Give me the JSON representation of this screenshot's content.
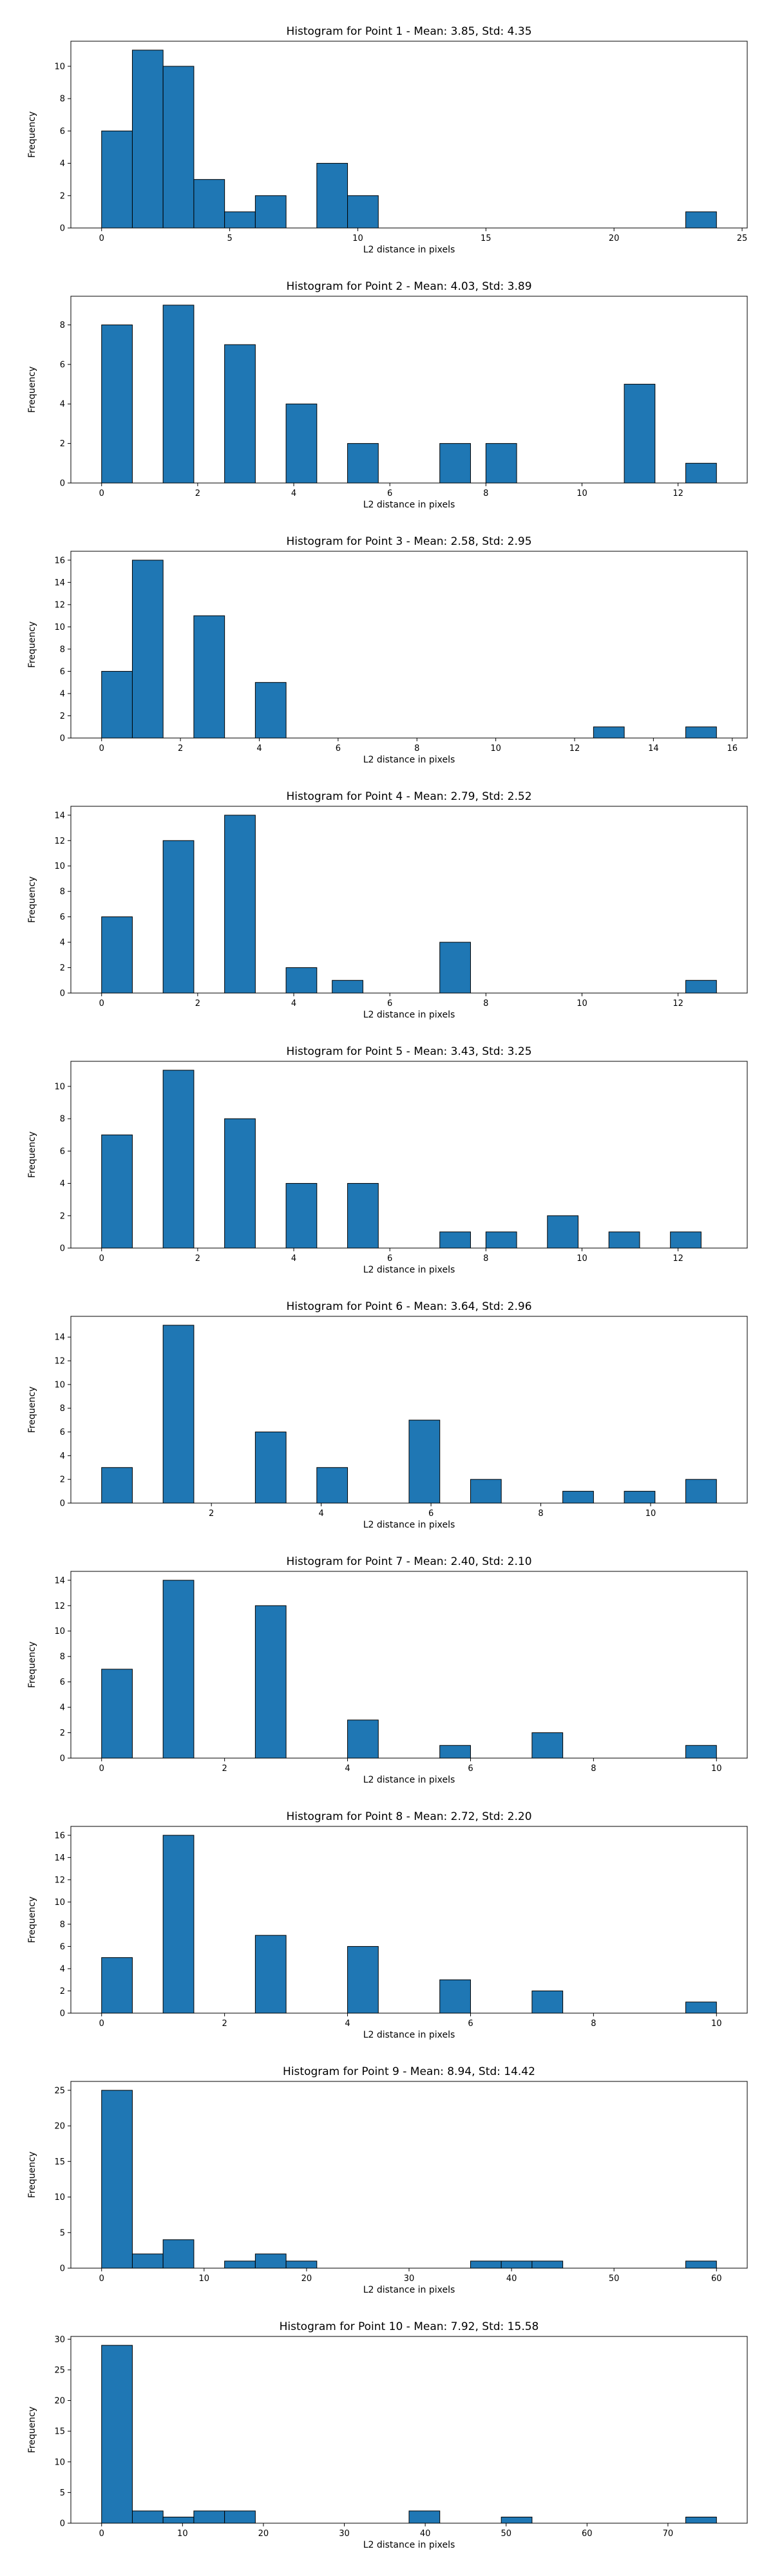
{
  "colors": {
    "bar_fill": "#1f77b4",
    "bar_edge": "#000000",
    "axes": "#000000",
    "background": "#ffffff"
  },
  "chart_data": [
    {
      "type": "bar",
      "title": "Histogram for Point 1 - Mean: 3.85, Std: 4.35",
      "xlabel": "L2 distance in pixels",
      "ylabel": "Frequency",
      "grid": false,
      "xlim": [
        -1.2,
        25.2
      ],
      "ylim": [
        0,
        11.55
      ],
      "xticks": [
        0,
        5,
        10,
        15,
        20,
        25
      ],
      "yticks": [
        0,
        2,
        4,
        6,
        8,
        10
      ],
      "bins": [
        {
          "x0": 0.0,
          "x1": 1.2,
          "count": 6
        },
        {
          "x0": 1.2,
          "x1": 2.4,
          "count": 11
        },
        {
          "x0": 2.4,
          "x1": 3.6,
          "count": 10
        },
        {
          "x0": 3.6,
          "x1": 4.8,
          "count": 3
        },
        {
          "x0": 4.8,
          "x1": 6.0,
          "count": 1
        },
        {
          "x0": 6.0,
          "x1": 7.2,
          "count": 2
        },
        {
          "x0": 8.4,
          "x1": 9.6,
          "count": 4
        },
        {
          "x0": 9.6,
          "x1": 10.8,
          "count": 2
        },
        {
          "x0": 22.8,
          "x1": 24.0,
          "count": 1
        }
      ]
    },
    {
      "type": "bar",
      "title": "Histogram for Point 2 - Mean: 4.03, Std: 3.89",
      "xlabel": "L2 distance in pixels",
      "ylabel": "Frequency",
      "grid": false,
      "xlim": [
        -0.64,
        13.44
      ],
      "ylim": [
        0,
        9.45
      ],
      "xticks": [
        0,
        2,
        4,
        6,
        8,
        10,
        12
      ],
      "yticks": [
        0,
        2,
        4,
        6,
        8
      ],
      "bins": [
        {
          "x0": 0.0,
          "x1": 0.64,
          "count": 8
        },
        {
          "x0": 1.28,
          "x1": 1.92,
          "count": 9
        },
        {
          "x0": 2.56,
          "x1": 3.2,
          "count": 7
        },
        {
          "x0": 3.84,
          "x1": 4.48,
          "count": 4
        },
        {
          "x0": 5.12,
          "x1": 5.76,
          "count": 2
        },
        {
          "x0": 7.04,
          "x1": 7.68,
          "count": 2
        },
        {
          "x0": 8.0,
          "x1": 8.64,
          "count": 2
        },
        {
          "x0": 10.88,
          "x1": 11.52,
          "count": 5
        },
        {
          "x0": 12.16,
          "x1": 12.8,
          "count": 1
        }
      ]
    },
    {
      "type": "bar",
      "title": "Histogram for Point 3 - Mean: 2.58, Std: 2.95",
      "xlabel": "L2 distance in pixels",
      "ylabel": "Frequency",
      "grid": false,
      "xlim": [
        -0.78,
        16.38
      ],
      "ylim": [
        0,
        16.8
      ],
      "xticks": [
        0,
        2,
        4,
        6,
        8,
        10,
        12,
        14,
        16
      ],
      "yticks": [
        0,
        2,
        4,
        6,
        8,
        10,
        12,
        14,
        16
      ],
      "bins": [
        {
          "x0": 0.0,
          "x1": 0.78,
          "count": 6
        },
        {
          "x0": 0.78,
          "x1": 1.56,
          "count": 16
        },
        {
          "x0": 2.34,
          "x1": 3.12,
          "count": 11
        },
        {
          "x0": 3.9,
          "x1": 4.68,
          "count": 5
        },
        {
          "x0": 12.48,
          "x1": 13.26,
          "count": 1
        },
        {
          "x0": 14.82,
          "x1": 15.6,
          "count": 1
        }
      ]
    },
    {
      "type": "bar",
      "title": "Histogram for Point 4 - Mean: 2.79, Std: 2.52",
      "xlabel": "L2 distance in pixels",
      "ylabel": "Frequency",
      "grid": false,
      "xlim": [
        -0.64,
        13.44
      ],
      "ylim": [
        0,
        14.7
      ],
      "xticks": [
        0,
        2,
        4,
        6,
        8,
        10,
        12
      ],
      "yticks": [
        0,
        2,
        4,
        6,
        8,
        10,
        12,
        14
      ],
      "bins": [
        {
          "x0": 0.0,
          "x1": 0.64,
          "count": 6
        },
        {
          "x0": 1.28,
          "x1": 1.92,
          "count": 12
        },
        {
          "x0": 2.56,
          "x1": 3.2,
          "count": 14
        },
        {
          "x0": 3.84,
          "x1": 4.48,
          "count": 2
        },
        {
          "x0": 4.8,
          "x1": 5.44,
          "count": 1
        },
        {
          "x0": 7.04,
          "x1": 7.68,
          "count": 4
        },
        {
          "x0": 12.16,
          "x1": 12.8,
          "count": 1
        }
      ]
    },
    {
      "type": "bar",
      "title": "Histogram for Point 5 - Mean: 3.43, Std: 3.25",
      "xlabel": "L2 distance in pixels",
      "ylabel": "Frequency",
      "grid": false,
      "xlim": [
        -0.64,
        13.44
      ],
      "ylim": [
        0,
        11.55
      ],
      "xticks": [
        0,
        2,
        4,
        6,
        8,
        10,
        12
      ],
      "yticks": [
        0,
        2,
        4,
        6,
        8,
        10
      ],
      "bins": [
        {
          "x0": 0.0,
          "x1": 0.64,
          "count": 7
        },
        {
          "x0": 1.28,
          "x1": 1.92,
          "count": 11
        },
        {
          "x0": 2.56,
          "x1": 3.2,
          "count": 8
        },
        {
          "x0": 3.84,
          "x1": 4.48,
          "count": 4
        },
        {
          "x0": 5.12,
          "x1": 5.76,
          "count": 4
        },
        {
          "x0": 7.04,
          "x1": 7.68,
          "count": 1
        },
        {
          "x0": 8.0,
          "x1": 8.64,
          "count": 1
        },
        {
          "x0": 9.28,
          "x1": 9.92,
          "count": 2
        },
        {
          "x0": 10.56,
          "x1": 11.2,
          "count": 1
        },
        {
          "x0": 11.84,
          "x1": 12.48,
          "count": 1
        }
      ]
    },
    {
      "type": "bar",
      "title": "Histogram for Point 6 - Mean: 3.64, Std: 2.96",
      "xlabel": "L2 distance in pixels",
      "ylabel": "Frequency",
      "grid": false,
      "xlim": [
        -0.56,
        11.76
      ],
      "ylim": [
        0,
        15.75
      ],
      "xticks": [
        2,
        4,
        6,
        8,
        10
      ],
      "yticks": [
        0,
        2,
        4,
        6,
        8,
        10,
        12,
        14
      ],
      "bins": [
        {
          "x0": 0.0,
          "x1": 0.56,
          "count": 3
        },
        {
          "x0": 1.12,
          "x1": 1.68,
          "count": 15
        },
        {
          "x0": 2.8,
          "x1": 3.36,
          "count": 6
        },
        {
          "x0": 3.92,
          "x1": 4.48,
          "count": 3
        },
        {
          "x0": 5.6,
          "x1": 6.16,
          "count": 7
        },
        {
          "x0": 6.72,
          "x1": 7.28,
          "count": 2
        },
        {
          "x0": 8.4,
          "x1": 8.96,
          "count": 1
        },
        {
          "x0": 9.52,
          "x1": 10.08,
          "count": 1
        },
        {
          "x0": 10.64,
          "x1": 11.2,
          "count": 2
        }
      ]
    },
    {
      "type": "bar",
      "title": "Histogram for Point 7 - Mean: 2.40, Std: 2.10",
      "xlabel": "L2 distance in pixels",
      "ylabel": "Frequency",
      "grid": false,
      "xlim": [
        -0.5,
        10.5
      ],
      "ylim": [
        0,
        14.7
      ],
      "xticks": [
        0,
        2,
        4,
        6,
        8,
        10
      ],
      "yticks": [
        0,
        2,
        4,
        6,
        8,
        10,
        12,
        14
      ],
      "bins": [
        {
          "x0": 0.0,
          "x1": 0.5,
          "count": 7
        },
        {
          "x0": 1.0,
          "x1": 1.5,
          "count": 14
        },
        {
          "x0": 2.5,
          "x1": 3.0,
          "count": 12
        },
        {
          "x0": 4.0,
          "x1": 4.5,
          "count": 3
        },
        {
          "x0": 5.5,
          "x1": 6.0,
          "count": 1
        },
        {
          "x0": 7.0,
          "x1": 7.5,
          "count": 2
        },
        {
          "x0": 9.5,
          "x1": 10.0,
          "count": 1
        }
      ]
    },
    {
      "type": "bar",
      "title": "Histogram for Point 8 - Mean: 2.72, Std: 2.20",
      "xlabel": "L2 distance in pixels",
      "ylabel": "Frequency",
      "grid": false,
      "xlim": [
        -0.5,
        10.5
      ],
      "ylim": [
        0,
        16.8
      ],
      "xticks": [
        0,
        2,
        4,
        6,
        8,
        10
      ],
      "yticks": [
        0,
        2,
        4,
        6,
        8,
        10,
        12,
        14,
        16
      ],
      "bins": [
        {
          "x0": 0.0,
          "x1": 0.5,
          "count": 5
        },
        {
          "x0": 1.0,
          "x1": 1.5,
          "count": 16
        },
        {
          "x0": 2.5,
          "x1": 3.0,
          "count": 7
        },
        {
          "x0": 4.0,
          "x1": 4.5,
          "count": 6
        },
        {
          "x0": 5.5,
          "x1": 6.0,
          "count": 3
        },
        {
          "x0": 7.0,
          "x1": 7.5,
          "count": 2
        },
        {
          "x0": 9.5,
          "x1": 10.0,
          "count": 1
        }
      ]
    },
    {
      "type": "bar",
      "title": "Histogram for Point 9 - Mean: 8.94, Std: 14.42",
      "xlabel": "L2 distance in pixels",
      "ylabel": "Frequency",
      "grid": false,
      "xlim": [
        -3.0,
        63.0
      ],
      "ylim": [
        0,
        26.25
      ],
      "xticks": [
        0,
        10,
        20,
        30,
        40,
        50,
        60
      ],
      "yticks": [
        0,
        5,
        10,
        15,
        20,
        25
      ],
      "bins": [
        {
          "x0": 0.0,
          "x1": 3.0,
          "count": 25
        },
        {
          "x0": 3.0,
          "x1": 6.0,
          "count": 2
        },
        {
          "x0": 6.0,
          "x1": 9.0,
          "count": 4
        },
        {
          "x0": 12.0,
          "x1": 15.0,
          "count": 1
        },
        {
          "x0": 15.0,
          "x1": 18.0,
          "count": 2
        },
        {
          "x0": 18.0,
          "x1": 21.0,
          "count": 1
        },
        {
          "x0": 36.0,
          "x1": 39.0,
          "count": 1
        },
        {
          "x0": 39.0,
          "x1": 42.0,
          "count": 1
        },
        {
          "x0": 42.0,
          "x1": 45.0,
          "count": 1
        },
        {
          "x0": 57.0,
          "x1": 60.0,
          "count": 1
        }
      ]
    },
    {
      "type": "bar",
      "title": "Histogram for Point 10 - Mean: 7.92, Std: 15.58",
      "xlabel": "L2 distance in pixels",
      "ylabel": "Frequency",
      "grid": false,
      "xlim": [
        -3.8,
        79.8
      ],
      "ylim": [
        0,
        30.45
      ],
      "xticks": [
        0,
        10,
        20,
        30,
        40,
        50,
        60,
        70
      ],
      "yticks": [
        0,
        5,
        10,
        15,
        20,
        25,
        30
      ],
      "bins": [
        {
          "x0": 0.0,
          "x1": 3.8,
          "count": 29
        },
        {
          "x0": 3.8,
          "x1": 7.6,
          "count": 2
        },
        {
          "x0": 7.6,
          "x1": 11.4,
          "count": 1
        },
        {
          "x0": 11.4,
          "x1": 15.2,
          "count": 2
        },
        {
          "x0": 15.2,
          "x1": 19.0,
          "count": 2
        },
        {
          "x0": 38.0,
          "x1": 41.8,
          "count": 2
        },
        {
          "x0": 49.4,
          "x1": 53.2,
          "count": 1
        },
        {
          "x0": 72.2,
          "x1": 76.0,
          "count": 1
        }
      ]
    }
  ]
}
